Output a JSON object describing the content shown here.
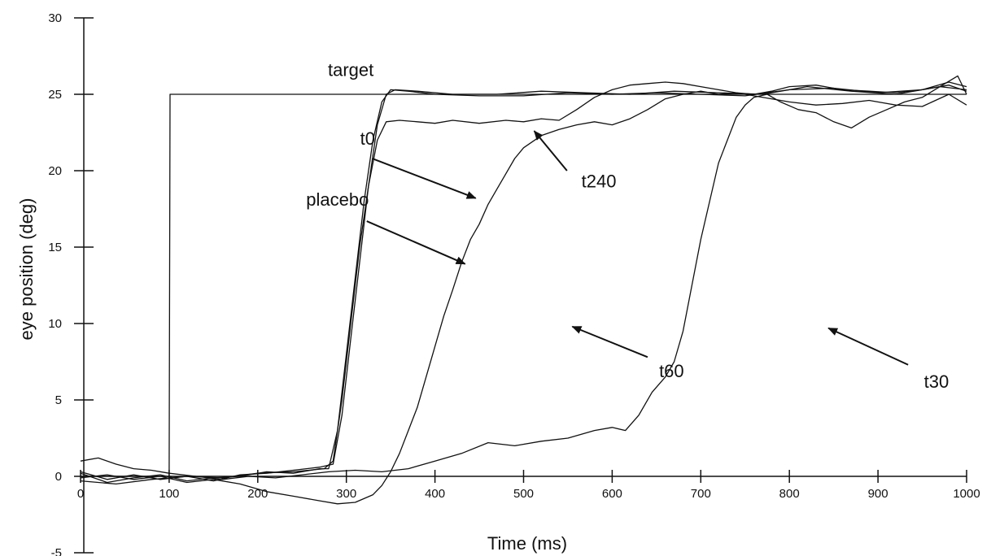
{
  "chart_data": {
    "type": "line",
    "title": "",
    "xlabel": "Time (ms)",
    "ylabel": "eye position (deg)",
    "xlim": [
      0,
      1000
    ],
    "ylim": [
      -5,
      30
    ],
    "x_ticks": [
      0,
      100,
      200,
      300,
      400,
      500,
      600,
      700,
      800,
      900,
      1000
    ],
    "y_ticks": [
      -5,
      0,
      5,
      10,
      15,
      20,
      25,
      30
    ],
    "grid": false,
    "legend": "none",
    "line_color": "#111111",
    "series": [
      {
        "name": "target",
        "points": [
          [
            0,
            0
          ],
          [
            100,
            0
          ],
          [
            101,
            25
          ],
          [
            1000,
            25
          ]
        ]
      },
      {
        "name": "t0",
        "points": [
          [
            0,
            0.2
          ],
          [
            30,
            -0.4
          ],
          [
            60,
            -0.1
          ],
          [
            90,
            0.1
          ],
          [
            120,
            -0.3
          ],
          [
            150,
            -0.1
          ],
          [
            180,
            0.0
          ],
          [
            210,
            0.3
          ],
          [
            240,
            0.2
          ],
          [
            270,
            0.5
          ],
          [
            280,
            0.5
          ],
          [
            290,
            3
          ],
          [
            300,
            8
          ],
          [
            310,
            13
          ],
          [
            320,
            18
          ],
          [
            330,
            22
          ],
          [
            340,
            24.5
          ],
          [
            350,
            25.3
          ],
          [
            370,
            25.2
          ],
          [
            400,
            25.0
          ],
          [
            450,
            24.9
          ],
          [
            500,
            24.9
          ],
          [
            550,
            25.1
          ],
          [
            600,
            25.0
          ],
          [
            650,
            25.1
          ],
          [
            700,
            25.0
          ],
          [
            750,
            24.9
          ],
          [
            800,
            25.3
          ],
          [
            850,
            25.4
          ],
          [
            900,
            25.1
          ],
          [
            950,
            25.3
          ],
          [
            980,
            25.6
          ],
          [
            1000,
            25.2
          ]
        ]
      },
      {
        "name": "placebo",
        "points": [
          [
            0,
            0.3
          ],
          [
            30,
            -0.2
          ],
          [
            60,
            0.1
          ],
          [
            90,
            -0.2
          ],
          [
            120,
            0.0
          ],
          [
            150,
            -0.3
          ],
          [
            180,
            0.1
          ],
          [
            210,
            0.2
          ],
          [
            240,
            0.4
          ],
          [
            270,
            0.6
          ],
          [
            285,
            0.8
          ],
          [
            295,
            4
          ],
          [
            305,
            9
          ],
          [
            315,
            14
          ],
          [
            325,
            19
          ],
          [
            335,
            23
          ],
          [
            345,
            25
          ],
          [
            355,
            25.3
          ],
          [
            380,
            25.2
          ],
          [
            420,
            25.0
          ],
          [
            470,
            25.0
          ],
          [
            520,
            25.2
          ],
          [
            570,
            25.1
          ],
          [
            620,
            25.0
          ],
          [
            670,
            25.2
          ],
          [
            720,
            25.1
          ],
          [
            770,
            25.0
          ],
          [
            820,
            25.5
          ],
          [
            870,
            25.2
          ],
          [
            920,
            25.0
          ],
          [
            970,
            25.5
          ],
          [
            1000,
            25.3
          ]
        ]
      },
      {
        "name": "t240",
        "points": [
          [
            0,
            -0.3
          ],
          [
            40,
            -0.5
          ],
          [
            80,
            -0.2
          ],
          [
            120,
            0.0
          ],
          [
            160,
            -0.1
          ],
          [
            200,
            0.2
          ],
          [
            240,
            0.3
          ],
          [
            275,
            0.5
          ],
          [
            285,
            1
          ],
          [
            295,
            5
          ],
          [
            305,
            10
          ],
          [
            315,
            15
          ],
          [
            325,
            19
          ],
          [
            335,
            22
          ],
          [
            345,
            23.2
          ],
          [
            360,
            23.3
          ],
          [
            380,
            23.2
          ],
          [
            400,
            23.1
          ],
          [
            420,
            23.3
          ],
          [
            450,
            23.1
          ],
          [
            480,
            23.3
          ],
          [
            500,
            23.2
          ],
          [
            520,
            23.4
          ],
          [
            540,
            23.3
          ],
          [
            560,
            24.0
          ],
          [
            580,
            24.8
          ],
          [
            600,
            25.3
          ],
          [
            620,
            25.6
          ],
          [
            640,
            25.7
          ],
          [
            660,
            25.8
          ],
          [
            680,
            25.7
          ],
          [
            700,
            25.5
          ],
          [
            720,
            25.3
          ],
          [
            740,
            25.1
          ],
          [
            760,
            25.0
          ],
          [
            780,
            25.2
          ],
          [
            800,
            25.5
          ],
          [
            830,
            25.6
          ],
          [
            860,
            25.3
          ],
          [
            890,
            25.2
          ],
          [
            920,
            25.1
          ],
          [
            950,
            25.3
          ],
          [
            980,
            25.8
          ],
          [
            1000,
            25.5
          ]
        ]
      },
      {
        "name": "t60",
        "points": [
          [
            0,
            -0.1
          ],
          [
            30,
            0.1
          ],
          [
            60,
            -0.2
          ],
          [
            90,
            0.0
          ],
          [
            120,
            -0.4
          ],
          [
            150,
            -0.2
          ],
          [
            180,
            -0.5
          ],
          [
            210,
            -1.0
          ],
          [
            240,
            -1.3
          ],
          [
            270,
            -1.6
          ],
          [
            290,
            -1.8
          ],
          [
            310,
            -1.7
          ],
          [
            330,
            -1.2
          ],
          [
            340,
            -0.6
          ],
          [
            350,
            0.3
          ],
          [
            360,
            1.5
          ],
          [
            370,
            3.0
          ],
          [
            380,
            4.5
          ],
          [
            390,
            6.5
          ],
          [
            400,
            8.5
          ],
          [
            410,
            10.5
          ],
          [
            420,
            12.2
          ],
          [
            430,
            14.0
          ],
          [
            440,
            15.5
          ],
          [
            450,
            16.5
          ],
          [
            460,
            17.8
          ],
          [
            470,
            18.8
          ],
          [
            480,
            19.8
          ],
          [
            490,
            20.8
          ],
          [
            500,
            21.5
          ],
          [
            520,
            22.3
          ],
          [
            540,
            22.7
          ],
          [
            560,
            23.0
          ],
          [
            580,
            23.2
          ],
          [
            600,
            23.0
          ],
          [
            620,
            23.4
          ],
          [
            640,
            24.0
          ],
          [
            660,
            24.7
          ],
          [
            680,
            25.0
          ],
          [
            700,
            25.2
          ],
          [
            720,
            25.0
          ],
          [
            740,
            25.1
          ],
          [
            760,
            24.9
          ],
          [
            780,
            24.7
          ],
          [
            800,
            24.5
          ],
          [
            830,
            24.3
          ],
          [
            860,
            24.4
          ],
          [
            890,
            24.6
          ],
          [
            920,
            24.3
          ],
          [
            950,
            24.2
          ],
          [
            980,
            25.0
          ],
          [
            1000,
            24.3
          ]
        ]
      },
      {
        "name": "t30",
        "points": [
          [
            0,
            1.0
          ],
          [
            20,
            1.2
          ],
          [
            40,
            0.8
          ],
          [
            60,
            0.5
          ],
          [
            80,
            0.4
          ],
          [
            100,
            0.2
          ],
          [
            130,
            0.0
          ],
          [
            160,
            -0.2
          ],
          [
            190,
            0.0
          ],
          [
            220,
            -0.1
          ],
          [
            250,
            0.1
          ],
          [
            280,
            0.3
          ],
          [
            310,
            0.4
          ],
          [
            340,
            0.3
          ],
          [
            370,
            0.5
          ],
          [
            400,
            1.0
          ],
          [
            430,
            1.5
          ],
          [
            460,
            2.2
          ],
          [
            490,
            2.0
          ],
          [
            520,
            2.3
          ],
          [
            550,
            2.5
          ],
          [
            580,
            3.0
          ],
          [
            600,
            3.2
          ],
          [
            615,
            3.0
          ],
          [
            630,
            4.0
          ],
          [
            645,
            5.5
          ],
          [
            660,
            6.5
          ],
          [
            670,
            7.5
          ],
          [
            680,
            9.5
          ],
          [
            690,
            12.5
          ],
          [
            700,
            15.5
          ],
          [
            710,
            18.0
          ],
          [
            720,
            20.5
          ],
          [
            730,
            22.0
          ],
          [
            740,
            23.5
          ],
          [
            750,
            24.3
          ],
          [
            760,
            24.8
          ],
          [
            775,
            25.0
          ],
          [
            790,
            24.5
          ],
          [
            810,
            24.0
          ],
          [
            830,
            23.8
          ],
          [
            850,
            23.2
          ],
          [
            870,
            22.8
          ],
          [
            890,
            23.5
          ],
          [
            910,
            24.0
          ],
          [
            930,
            24.5
          ],
          [
            950,
            24.8
          ],
          [
            970,
            25.5
          ],
          [
            990,
            26.2
          ],
          [
            1000,
            25.0
          ]
        ]
      }
    ],
    "annotations": [
      {
        "text": "target",
        "x": 305,
        "y": 26.2,
        "arrow": false
      },
      {
        "text": "t0",
        "x": 324,
        "y": 21.7,
        "arrow": true,
        "arrow_from": [
          329,
          20.8
        ],
        "arrow_to": [
          446,
          18.2
        ]
      },
      {
        "text": "placebo",
        "x": 290,
        "y": 17.7,
        "arrow": true,
        "arrow_from": [
          323,
          16.7
        ],
        "arrow_to": [
          434,
          13.9
        ]
      },
      {
        "text": "t240",
        "x": 585,
        "y": 18.9,
        "arrow": true,
        "arrow_from": [
          549,
          20.0
        ],
        "arrow_to": [
          512,
          22.6
        ]
      },
      {
        "text": "t60",
        "x": 667,
        "y": 6.5,
        "arrow": true,
        "arrow_from": [
          640,
          7.8
        ],
        "arrow_to": [
          555,
          9.8
        ]
      },
      {
        "text": "t30",
        "x": 966,
        "y": 5.8,
        "arrow": true,
        "arrow_from": [
          934,
          7.3
        ],
        "arrow_to": [
          844,
          9.7
        ]
      }
    ]
  }
}
